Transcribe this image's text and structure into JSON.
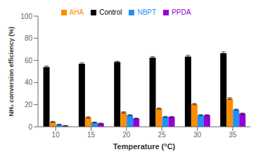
{
  "chart_data": {
    "type": "bar",
    "categories": [
      "10",
      "15",
      "20",
      "25",
      "30",
      "35"
    ],
    "series": [
      {
        "name": "Control",
        "color": "#000000",
        "values": [
          54.0,
          57.0,
          58.5,
          62.5,
          63.5,
          66.5
        ],
        "errors": [
          1.0,
          0.8,
          0.7,
          1.0,
          1.0,
          1.2
        ]
      },
      {
        "name": "AHA",
        "color": "#FF8C00",
        "values": [
          4.5,
          8.5,
          13.0,
          16.5,
          20.5,
          25.5
        ],
        "errors": [
          0.4,
          0.5,
          0.5,
          0.5,
          0.6,
          0.7
        ]
      },
      {
        "name": "NBPT",
        "color": "#1E90FF",
        "values": [
          2.0,
          4.0,
          10.5,
          9.0,
          10.5,
          15.5
        ],
        "errors": [
          0.3,
          0.3,
          0.4,
          0.4,
          0.4,
          0.5
        ]
      },
      {
        "name": "PPDA",
        "color": "#9400D3",
        "values": [
          1.0,
          3.0,
          7.5,
          9.0,
          10.5,
          12.0
        ],
        "errors": [
          0.2,
          0.3,
          0.3,
          0.4,
          0.4,
          0.5
        ]
      }
    ],
    "xlabel": "Temperature (°C)",
    "ylabel": "NH₃ conversion efficiency (%)",
    "ylim": [
      0,
      100
    ],
    "yticks": [
      0,
      20,
      40,
      60,
      80,
      100
    ],
    "grid": false,
    "legend": "upper center"
  }
}
